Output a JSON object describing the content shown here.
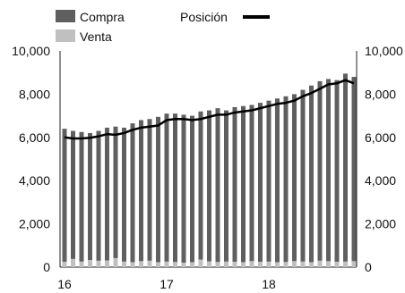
{
  "chart_data": {
    "type": "bar",
    "x": [
      "2016-01",
      "2016-02",
      "2016-03",
      "2016-04",
      "2016-05",
      "2016-06",
      "2016-07",
      "2016-08",
      "2016-09",
      "2016-10",
      "2016-11",
      "2016-12",
      "2017-01",
      "2017-02",
      "2017-03",
      "2017-04",
      "2017-05",
      "2017-06",
      "2017-07",
      "2017-08",
      "2017-09",
      "2017-10",
      "2017-11",
      "2017-12",
      "2018-01",
      "2018-02",
      "2018-03",
      "2018-04",
      "2018-05",
      "2018-06",
      "2018-07",
      "2018-08",
      "2018-09",
      "2018-10",
      "2018-11"
    ],
    "x_tick_labels": [
      {
        "label": "16",
        "x": "2016-01"
      },
      {
        "label": "17",
        "x": "2017-01"
      },
      {
        "label": "18",
        "x": "2018-01"
      }
    ],
    "series": [
      {
        "name": "Compra",
        "type": "bar",
        "color": "#5f5f5f",
        "values": [
          6400,
          6300,
          6250,
          6200,
          6300,
          6450,
          6500,
          6450,
          6650,
          6800,
          6850,
          6950,
          7100,
          7100,
          7050,
          7000,
          7200,
          7250,
          7350,
          7250,
          7400,
          7450,
          7500,
          7600,
          7700,
          7800,
          7900,
          8000,
          8200,
          8400,
          8600,
          8700,
          8650,
          8950,
          8800
        ]
      },
      {
        "name": "Venta",
        "type": "bar",
        "color": "#c0c0c0",
        "values": [
          250,
          380,
          260,
          330,
          300,
          310,
          420,
          260,
          230,
          280,
          300,
          230,
          260,
          240,
          210,
          230,
          350,
          270,
          240,
          260,
          250,
          230,
          280,
          250,
          260,
          230,
          240,
          280,
          260,
          230,
          300,
          280,
          250,
          260,
          280
        ]
      },
      {
        "name": "Posición",
        "type": "line",
        "color": "#000000",
        "values": [
          6000,
          5950,
          5950,
          5980,
          6050,
          6150,
          6120,
          6200,
          6350,
          6450,
          6500,
          6550,
          6800,
          6850,
          6850,
          6800,
          6850,
          6950,
          7050,
          7050,
          7150,
          7200,
          7250,
          7350,
          7450,
          7550,
          7600,
          7700,
          7900,
          8050,
          8250,
          8450,
          8500,
          8650,
          8500
        ]
      }
    ],
    "ylim": [
      0,
      10000
    ],
    "y_ticks": [
      "0",
      "2,000",
      "4,000",
      "6,000",
      "8,000",
      "10,000"
    ],
    "y_tick_values": [
      0,
      2000,
      4000,
      6000,
      8000,
      10000
    ],
    "secondary_y_axis": true,
    "legend_placement": "top",
    "grid": false
  }
}
